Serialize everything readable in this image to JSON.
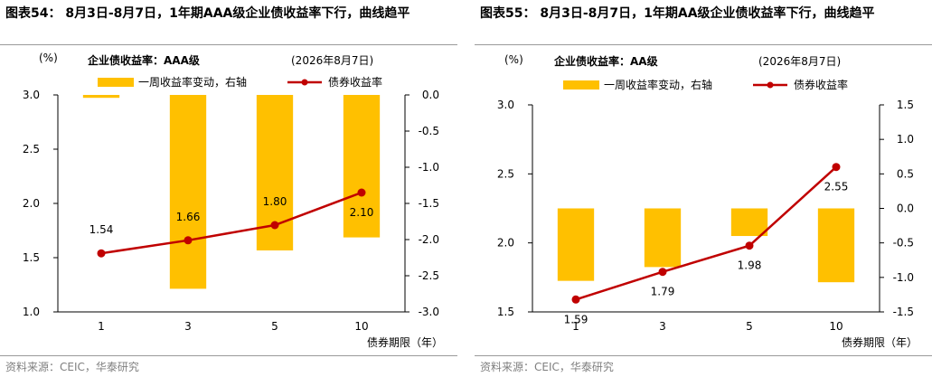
{
  "panels": [
    {
      "figure_title": "图表54： 8月3日-8月7日，1年期AAA级企业债收益率下行，曲线趋平",
      "source": "资料来源：CEIC，华泰研究"
    },
    {
      "figure_title": "图表55： 8月3日-8月7日，1年期AA级企业债收益率下行，曲线趋平",
      "source": "资料来源：CEIC，华泰研究"
    }
  ],
  "chart_data": [
    {
      "type": "bar+line",
      "title": "企业债收益率：AAA级",
      "date_note": "(2026年8月7日)",
      "categories": [
        "1",
        "3",
        "5",
        "10"
      ],
      "xlabel": "债券期限（年）",
      "y_left_unit": "(%)",
      "y_left": {
        "min": 1.0,
        "max": 3.0,
        "ticks": [
          "1.0",
          "1.5",
          "2.0",
          "2.5",
          "3.0"
        ]
      },
      "y_right": {
        "min": -3.0,
        "max": 0.0,
        "ticks": [
          "0.0",
          "-0.5",
          "-1.0",
          "-1.5",
          "-2.0",
          "-2.5",
          "-3.0"
        ]
      },
      "series": [
        {
          "name": "一周收益率变动，右轴",
          "type": "bar",
          "axis": "right",
          "color": "#FFC000",
          "values": [
            -0.04,
            -2.68,
            -2.15,
            -1.97
          ]
        },
        {
          "name": "债券收益率",
          "type": "line",
          "axis": "left",
          "color": "#C00000",
          "values": [
            1.54,
            1.66,
            1.8,
            2.1
          ],
          "labels": [
            "1.54",
            "1.66",
            "1.80",
            "2.10"
          ]
        }
      ],
      "legend_position": "top"
    },
    {
      "type": "bar+line",
      "title": "企业债收益率：AA级",
      "date_note": "(2026年8月7日)",
      "categories": [
        "1",
        "3",
        "5",
        "10"
      ],
      "xlabel": "债券期限（年）",
      "y_left_unit": "(%)",
      "y_left": {
        "min": 1.5,
        "max": 3.0,
        "ticks": [
          "1.5",
          "2.0",
          "2.5",
          "3.0"
        ]
      },
      "y_right": {
        "min": -1.5,
        "max": 1.5,
        "ticks": [
          "1.5",
          "1.0",
          "0.5",
          "0.0",
          "-0.5",
          "-1.0",
          "-1.5"
        ]
      },
      "series": [
        {
          "name": "一周收益率变动，右轴",
          "type": "bar",
          "axis": "right",
          "color": "#FFC000",
          "values": [
            -1.05,
            -0.85,
            -0.4,
            -1.07
          ]
        },
        {
          "name": "债券收益率",
          "type": "line",
          "axis": "left",
          "color": "#C00000",
          "values": [
            1.59,
            1.79,
            1.98,
            2.55
          ],
          "labels": [
            "1.59",
            "1.79",
            "1.98",
            "2.55"
          ]
        }
      ],
      "legend_position": "top"
    }
  ]
}
